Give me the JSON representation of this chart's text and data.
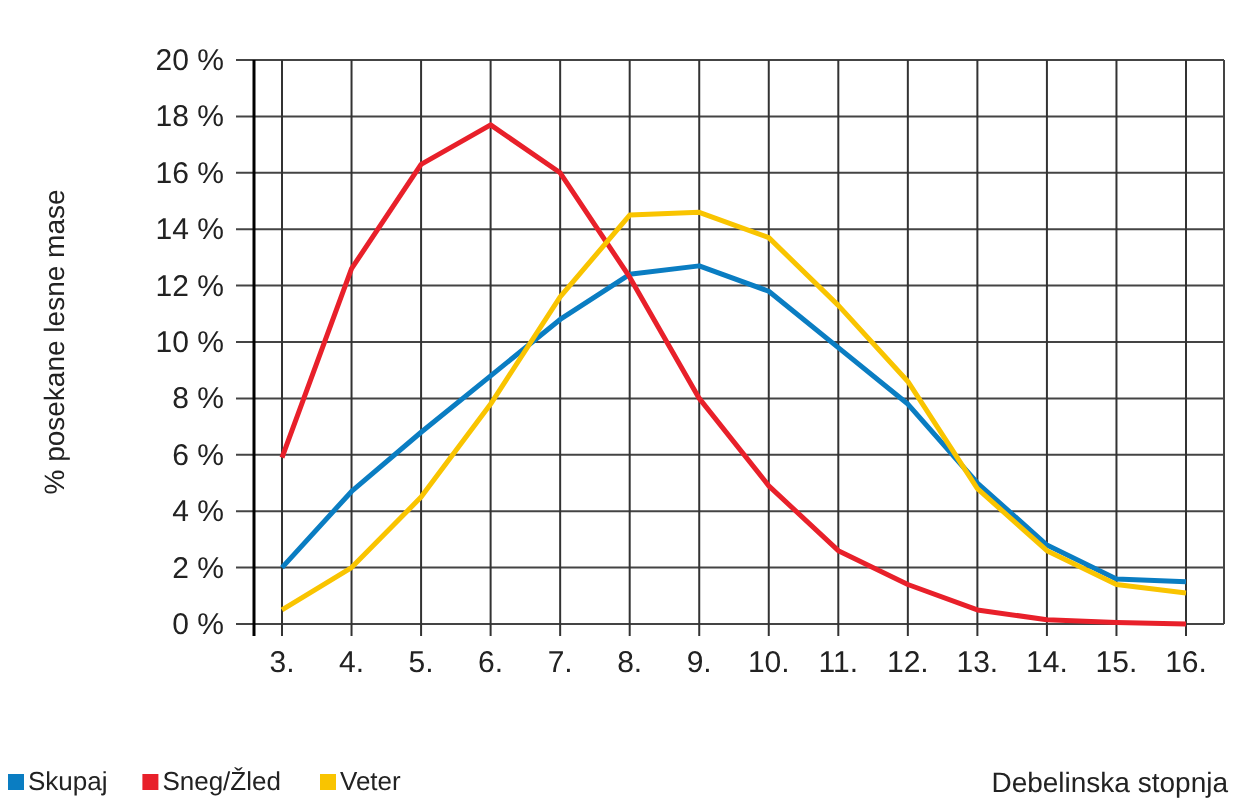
{
  "chart_data": {
    "type": "line",
    "xlabel": "Debelinska stopnja",
    "ylabel": "% posekane lesne mase",
    "categories": [
      "3.",
      "4.",
      "5.",
      "6.",
      "7.",
      "8.",
      "9.",
      "10.",
      "11.",
      "12.",
      "13.",
      "14.",
      "15.",
      "16."
    ],
    "series": [
      {
        "name": "Skupaj",
        "color": "#0a7dc2",
        "values": [
          2.0,
          4.7,
          6.8,
          8.8,
          10.8,
          12.4,
          12.7,
          11.8,
          9.8,
          7.8,
          5.0,
          2.8,
          1.6,
          1.5
        ]
      },
      {
        "name": "Sneg/Žled",
        "color": "#e8202a",
        "values": [
          5.9,
          12.6,
          16.3,
          17.7,
          16.0,
          12.3,
          8.0,
          4.9,
          2.6,
          1.4,
          0.5,
          0.15,
          0.05,
          0
        ]
      },
      {
        "name": "Veter",
        "color": "#f9c400",
        "values": [
          0.5,
          2.0,
          4.5,
          7.8,
          11.6,
          14.5,
          14.6,
          13.7,
          11.3,
          8.6,
          4.8,
          2.6,
          1.4,
          1.1
        ]
      }
    ],
    "ylim": [
      0,
      20
    ],
    "yticks": [
      {
        "value": 0,
        "label": "0 %"
      },
      {
        "value": 2,
        "label": "2 %"
      },
      {
        "value": 4,
        "label": "4 %"
      },
      {
        "value": 6,
        "label": "6 %"
      },
      {
        "value": 8,
        "label": "8 %"
      },
      {
        "value": 10,
        "label": "10 %"
      },
      {
        "value": 12,
        "label": "12 %"
      },
      {
        "value": 14,
        "label": "14 %"
      },
      {
        "value": 16,
        "label": "16 %"
      },
      {
        "value": 18,
        "label": "18 %"
      },
      {
        "value": 20,
        "label": "20 %"
      }
    ],
    "grid": true,
    "legend": "bottom left",
    "marker": "none",
    "line_style": "solid"
  }
}
